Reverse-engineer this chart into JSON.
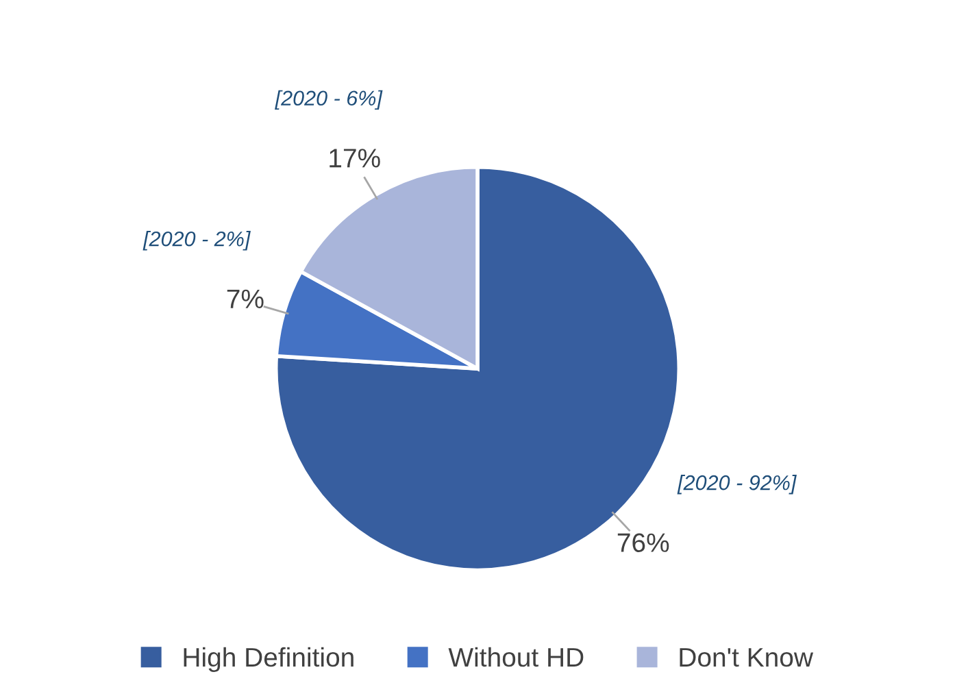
{
  "chart_data": {
    "type": "pie",
    "categories": [
      "High Definition",
      "Without HD",
      "Don't Know"
    ],
    "values": [
      76,
      7,
      17
    ],
    "colors": [
      "#375e9f",
      "#4472c4",
      "#a9b5da"
    ],
    "value_labels": [
      "76%",
      "7%",
      "17%"
    ],
    "annotations": [
      "[2020 - 92%]",
      "[2020 - 2%]",
      "[2020 - 6%]"
    ],
    "legend": "bottom"
  }
}
